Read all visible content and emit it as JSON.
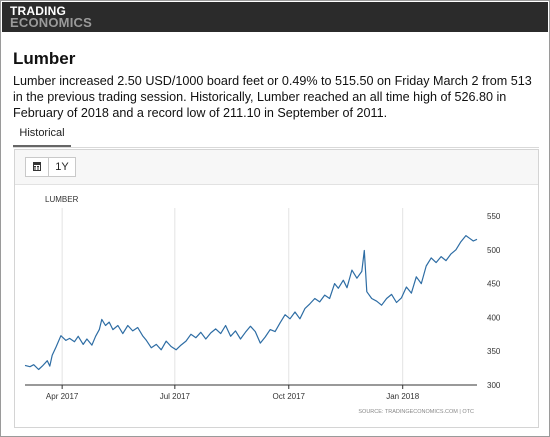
{
  "logo": {
    "line1": "TRADING",
    "line2": "ECONOMICS"
  },
  "page": {
    "title": "Lumber",
    "description": "Lumber increased 2.50 USD/1000 board feet or 0.49% to 515.50 on Friday March 2 from 513 in the previous trading session. Historically, Lumber reached an all time high of 526.80 in February of 2018 and a record low of 211.10 in September of 2011."
  },
  "tabs": [
    {
      "label": "Historical"
    }
  ],
  "toolbar": {
    "calendar_icon": "calendar-icon",
    "range_label": "1Y"
  },
  "chart_data": {
    "type": "line",
    "title": "LUMBER",
    "x_tick_labels": [
      "Apr 2017",
      "Jul 2017",
      "Oct 2017",
      "Jan 2018"
    ],
    "y_tick_labels": [
      "300",
      "350",
      "400",
      "450",
      "500",
      "550"
    ],
    "ylim": [
      300,
      550
    ],
    "xlim": [
      "2017-03-02",
      "2018-03-02"
    ],
    "grid": "vertical",
    "source": "SOURCE: TRADINGECONOMICS.COM | OTC",
    "line_color": "#2e6da4",
    "series": [
      {
        "values": [
          {
            "x": "2017-03-02",
            "y": 329
          },
          {
            "x": "2017-03-06",
            "y": 327
          },
          {
            "x": "2017-03-09",
            "y": 330
          },
          {
            "x": "2017-03-13",
            "y": 323
          },
          {
            "x": "2017-03-16",
            "y": 328
          },
          {
            "x": "2017-03-20",
            "y": 336
          },
          {
            "x": "2017-03-22",
            "y": 328
          },
          {
            "x": "2017-03-24",
            "y": 344
          },
          {
            "x": "2017-03-27",
            "y": 356
          },
          {
            "x": "2017-03-31",
            "y": 373
          },
          {
            "x": "2017-04-04",
            "y": 366
          },
          {
            "x": "2017-04-07",
            "y": 369
          },
          {
            "x": "2017-04-11",
            "y": 364
          },
          {
            "x": "2017-04-14",
            "y": 372
          },
          {
            "x": "2017-04-18",
            "y": 360
          },
          {
            "x": "2017-04-21",
            "y": 368
          },
          {
            "x": "2017-04-25",
            "y": 359
          },
          {
            "x": "2017-04-28",
            "y": 372
          },
          {
            "x": "2017-05-01",
            "y": 382
          },
          {
            "x": "2017-05-03",
            "y": 397
          },
          {
            "x": "2017-05-06",
            "y": 388
          },
          {
            "x": "2017-05-09",
            "y": 393
          },
          {
            "x": "2017-05-12",
            "y": 382
          },
          {
            "x": "2017-05-16",
            "y": 388
          },
          {
            "x": "2017-05-20",
            "y": 376
          },
          {
            "x": "2017-05-24",
            "y": 388
          },
          {
            "x": "2017-05-28",
            "y": 380
          },
          {
            "x": "2017-06-01",
            "y": 385
          },
          {
            "x": "2017-06-05",
            "y": 373
          },
          {
            "x": "2017-06-08",
            "y": 366
          },
          {
            "x": "2017-06-12",
            "y": 355
          },
          {
            "x": "2017-06-16",
            "y": 360
          },
          {
            "x": "2017-06-20",
            "y": 352
          },
          {
            "x": "2017-06-24",
            "y": 365
          },
          {
            "x": "2017-06-28",
            "y": 357
          },
          {
            "x": "2017-07-02",
            "y": 352
          },
          {
            "x": "2017-07-06",
            "y": 359
          },
          {
            "x": "2017-07-10",
            "y": 365
          },
          {
            "x": "2017-07-14",
            "y": 375
          },
          {
            "x": "2017-07-18",
            "y": 370
          },
          {
            "x": "2017-07-22",
            "y": 378
          },
          {
            "x": "2017-07-26",
            "y": 368
          },
          {
            "x": "2017-07-30",
            "y": 377
          },
          {
            "x": "2017-08-03",
            "y": 383
          },
          {
            "x": "2017-08-07",
            "y": 376
          },
          {
            "x": "2017-08-11",
            "y": 388
          },
          {
            "x": "2017-08-15",
            "y": 372
          },
          {
            "x": "2017-08-19",
            "y": 380
          },
          {
            "x": "2017-08-23",
            "y": 368
          },
          {
            "x": "2017-08-27",
            "y": 378
          },
          {
            "x": "2017-08-31",
            "y": 387
          },
          {
            "x": "2017-09-04",
            "y": 379
          },
          {
            "x": "2017-09-08",
            "y": 362
          },
          {
            "x": "2017-09-12",
            "y": 371
          },
          {
            "x": "2017-09-16",
            "y": 382
          },
          {
            "x": "2017-09-20",
            "y": 379
          },
          {
            "x": "2017-09-24",
            "y": 392
          },
          {
            "x": "2017-09-28",
            "y": 404
          },
          {
            "x": "2017-10-02",
            "y": 398
          },
          {
            "x": "2017-10-06",
            "y": 408
          },
          {
            "x": "2017-10-10",
            "y": 398
          },
          {
            "x": "2017-10-14",
            "y": 413
          },
          {
            "x": "2017-10-18",
            "y": 420
          },
          {
            "x": "2017-10-22",
            "y": 428
          },
          {
            "x": "2017-10-26",
            "y": 423
          },
          {
            "x": "2017-10-30",
            "y": 433
          },
          {
            "x": "2017-11-03",
            "y": 428
          },
          {
            "x": "2017-11-07",
            "y": 450
          },
          {
            "x": "2017-11-10",
            "y": 443
          },
          {
            "x": "2017-11-14",
            "y": 455
          },
          {
            "x": "2017-11-17",
            "y": 444
          },
          {
            "x": "2017-11-21",
            "y": 470
          },
          {
            "x": "2017-11-25",
            "y": 458
          },
          {
            "x": "2017-11-29",
            "y": 468
          },
          {
            "x": "2017-12-01",
            "y": 499
          },
          {
            "x": "2017-12-03",
            "y": 438
          },
          {
            "x": "2017-12-07",
            "y": 428
          },
          {
            "x": "2017-12-11",
            "y": 424
          },
          {
            "x": "2017-12-15",
            "y": 418
          },
          {
            "x": "2017-12-19",
            "y": 428
          },
          {
            "x": "2017-12-23",
            "y": 434
          },
          {
            "x": "2017-12-27",
            "y": 422
          },
          {
            "x": "2017-12-31",
            "y": 429
          },
          {
            "x": "2018-01-04",
            "y": 445
          },
          {
            "x": "2018-01-08",
            "y": 436
          },
          {
            "x": "2018-01-12",
            "y": 460
          },
          {
            "x": "2018-01-16",
            "y": 450
          },
          {
            "x": "2018-01-20",
            "y": 476
          },
          {
            "x": "2018-01-24",
            "y": 488
          },
          {
            "x": "2018-01-28",
            "y": 481
          },
          {
            "x": "2018-02-01",
            "y": 490
          },
          {
            "x": "2018-02-05",
            "y": 484
          },
          {
            "x": "2018-02-09",
            "y": 494
          },
          {
            "x": "2018-02-13",
            "y": 500
          },
          {
            "x": "2018-02-17",
            "y": 512
          },
          {
            "x": "2018-02-21",
            "y": 521
          },
          {
            "x": "2018-02-24",
            "y": 517
          },
          {
            "x": "2018-02-27",
            "y": 513
          },
          {
            "x": "2018-03-02",
            "y": 515.5
          }
        ]
      }
    ]
  }
}
